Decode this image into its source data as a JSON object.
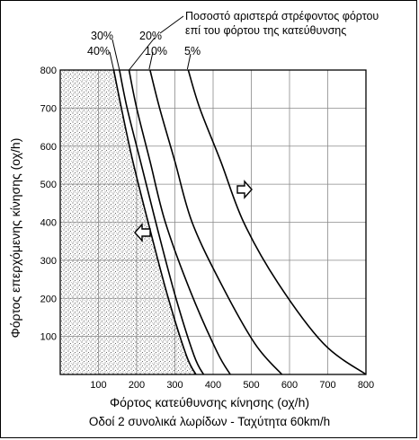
{
  "chart_data": {
    "type": "line",
    "xlabel": "Φόρτος κατεύθυνσης κίνησης (οχ/h)",
    "ylabel": "Φόρτος επερχόμενης κίνησης (οχ/h)",
    "subtitle": "Οδοί 2 συνολικά λωρίδων - Ταχύτητα 60km/h",
    "annotation": [
      "Ποσοστό αριστερά στρέφοντος φόρτου",
      "επί του φόρτου της κατεύθυνσης"
    ],
    "xlim": [
      0,
      800
    ],
    "ylim": [
      0,
      800
    ],
    "xticks": [
      "100",
      "200",
      "300",
      "400",
      "500",
      "600",
      "700",
      "800"
    ],
    "yticks": [
      "100",
      "200",
      "300",
      "400",
      "500",
      "600",
      "700",
      "800"
    ],
    "grid": true,
    "shaded_region": "left of the 40% curve (dotted)",
    "series": [
      {
        "name": "40%",
        "x": [
          140,
          160,
          190,
          230,
          280,
          330,
          355
        ],
        "y": [
          800,
          700,
          560,
          400,
          210,
          50,
          0
        ]
      },
      {
        "name": "30%",
        "x": [
          155,
          175,
          210,
          250,
          300,
          350,
          375
        ],
        "y": [
          800,
          700,
          560,
          400,
          210,
          50,
          0
        ]
      },
      {
        "name": "20%",
        "x": [
          180,
          200,
          235,
          275,
          340,
          410,
          445
        ],
        "y": [
          800,
          700,
          560,
          400,
          220,
          60,
          0
        ]
      },
      {
        "name": "10%",
        "x": [
          235,
          260,
          300,
          345,
          420,
          510,
          580
        ],
        "y": [
          800,
          700,
          560,
          400,
          240,
          80,
          0
        ]
      },
      {
        "name": "5%",
        "x": [
          335,
          365,
          420,
          480,
          570,
          690,
          800
        ],
        "y": [
          800,
          700,
          560,
          400,
          240,
          80,
          0
        ]
      }
    ]
  }
}
